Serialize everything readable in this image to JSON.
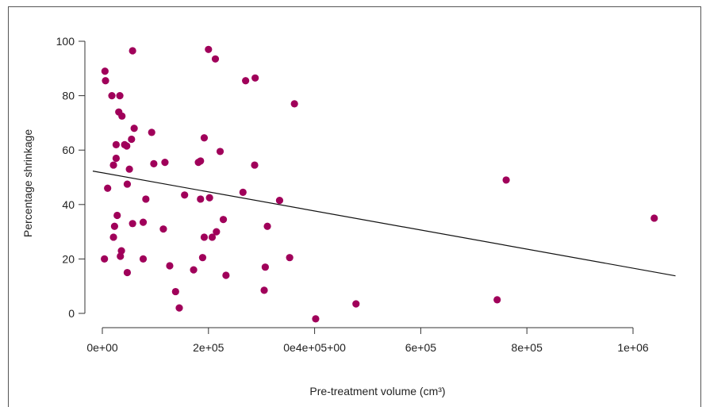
{
  "chart_data": {
    "type": "scatter",
    "xlabel": "Pre-treatment volume (cm³)",
    "ylabel": "Percentage shrinkage",
    "xlim": [
      -18000,
      1090000
    ],
    "ylim": [
      -6,
      103
    ],
    "x_ticks": [
      {
        "value": 0,
        "label": "0e+00"
      },
      {
        "value": 200000,
        "label": "2e+05"
      },
      {
        "value": 400000,
        "label": "0e4e+05+00"
      },
      {
        "value": 600000,
        "label": "6e+05"
      },
      {
        "value": 800000,
        "label": "8e+05"
      },
      {
        "value": 1000000,
        "label": "1e+06"
      }
    ],
    "y_ticks": [
      {
        "value": 0,
        "label": "0"
      },
      {
        "value": 20,
        "label": "20"
      },
      {
        "value": 40,
        "label": "40"
      },
      {
        "value": 60,
        "label": "60"
      },
      {
        "value": 80,
        "label": "80"
      },
      {
        "value": 100,
        "label": "100"
      }
    ],
    "grid": false,
    "point_color": "#a0005a",
    "line_color": "#111111",
    "trend_line": {
      "x": [
        -18000,
        1080000
      ],
      "y": [
        52.3,
        13.8
      ]
    },
    "points": [
      {
        "x": 5000,
        "y": 89
      },
      {
        "x": 6000,
        "y": 85.5
      },
      {
        "x": 18000,
        "y": 80
      },
      {
        "x": 33000,
        "y": 80
      },
      {
        "x": 57000,
        "y": 96.5
      },
      {
        "x": 31000,
        "y": 74
      },
      {
        "x": 37000,
        "y": 72.5
      },
      {
        "x": 60000,
        "y": 68
      },
      {
        "x": 93000,
        "y": 66.5
      },
      {
        "x": 26000,
        "y": 62
      },
      {
        "x": 42000,
        "y": 62
      },
      {
        "x": 46000,
        "y": 61.5
      },
      {
        "x": 55000,
        "y": 64
      },
      {
        "x": 26000,
        "y": 57
      },
      {
        "x": 21000,
        "y": 54.5
      },
      {
        "x": 51000,
        "y": 53
      },
      {
        "x": 97000,
        "y": 55
      },
      {
        "x": 118000,
        "y": 55.5
      },
      {
        "x": 47000,
        "y": 47.5
      },
      {
        "x": 10000,
        "y": 46
      },
      {
        "x": 82000,
        "y": 42
      },
      {
        "x": 155000,
        "y": 43.5
      },
      {
        "x": 28000,
        "y": 36
      },
      {
        "x": 57000,
        "y": 33
      },
      {
        "x": 77000,
        "y": 33.5
      },
      {
        "x": 23000,
        "y": 32
      },
      {
        "x": 115000,
        "y": 31
      },
      {
        "x": 21000,
        "y": 28
      },
      {
        "x": 36000,
        "y": 23
      },
      {
        "x": 34000,
        "y": 21
      },
      {
        "x": 77000,
        "y": 20
      },
      {
        "x": 4000,
        "y": 20
      },
      {
        "x": 127000,
        "y": 17.5
      },
      {
        "x": 47000,
        "y": 15
      },
      {
        "x": 138000,
        "y": 8
      },
      {
        "x": 145000,
        "y": 2
      },
      {
        "x": 200000,
        "y": 97
      },
      {
        "x": 213000,
        "y": 93.5
      },
      {
        "x": 270000,
        "y": 85.5
      },
      {
        "x": 288000,
        "y": 86.5
      },
      {
        "x": 362000,
        "y": 77
      },
      {
        "x": 192000,
        "y": 64.5
      },
      {
        "x": 222000,
        "y": 59.5
      },
      {
        "x": 181000,
        "y": 55.5
      },
      {
        "x": 185000,
        "y": 56
      },
      {
        "x": 287000,
        "y": 54.5
      },
      {
        "x": 202000,
        "y": 42.5
      },
      {
        "x": 185000,
        "y": 42
      },
      {
        "x": 265000,
        "y": 44.5
      },
      {
        "x": 334000,
        "y": 41.5
      },
      {
        "x": 228000,
        "y": 34.5
      },
      {
        "x": 215000,
        "y": 30
      },
      {
        "x": 311000,
        "y": 32
      },
      {
        "x": 192000,
        "y": 28
      },
      {
        "x": 207000,
        "y": 28
      },
      {
        "x": 189000,
        "y": 20.5
      },
      {
        "x": 172000,
        "y": 16
      },
      {
        "x": 233000,
        "y": 14
      },
      {
        "x": 307000,
        "y": 17
      },
      {
        "x": 353000,
        "y": 20.5
      },
      {
        "x": 305000,
        "y": 8.5
      },
      {
        "x": 402000,
        "y": -2
      },
      {
        "x": 478000,
        "y": 3.5
      },
      {
        "x": 744000,
        "y": 5
      },
      {
        "x": 761000,
        "y": 49
      },
      {
        "x": 1040000,
        "y": 35
      }
    ]
  }
}
